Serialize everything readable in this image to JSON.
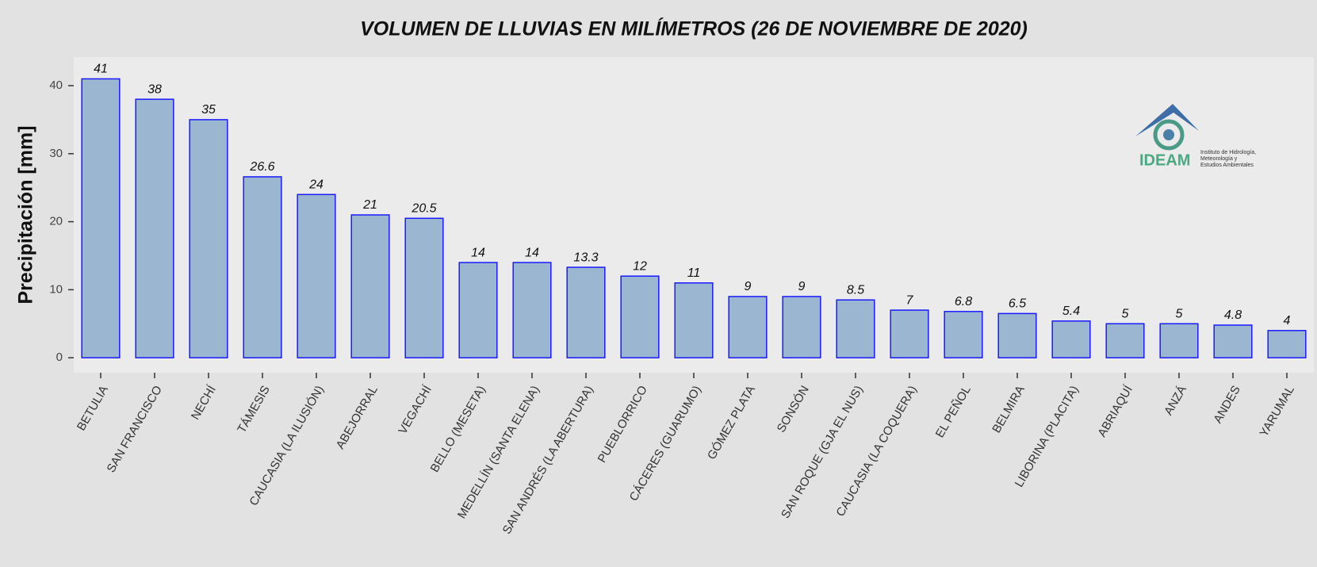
{
  "chart_data": {
    "type": "bar",
    "title": "VOLUMEN DE LLUVIAS EN MILÍMETROS (26 DE NOVIEMBRE DE 2020)",
    "y_label": "Precipitación [mm]",
    "categories": [
      "BETULIA",
      "SAN FRANCISCO",
      "NECHÍ",
      "TÁMESIS",
      "CAUCASIA (LA ILUSIÓN)",
      "ABEJORRAL",
      "VEGACHÍ",
      "BELLO (MESETA)",
      "MEDELLÍN (SANTA ELENA)",
      "SAN ANDRÉS (LA ABERTURA)",
      "PUEBLORRICO",
      "CÁCERES (GUARUMO)",
      "GÓMEZ PLATA",
      "SONSÓN",
      "SAN ROQUE (GJA EL NUS)",
      "CAUCASIA (LA COQUERA)",
      "EL PEÑOL",
      "BELMIRA",
      "LIBORINA (PLACITA)",
      "ABRIAQUÍ",
      "ANZÁ",
      "ANDES",
      "YARUMAL"
    ],
    "values": [
      41,
      38,
      35,
      26.6,
      24,
      21,
      20.5,
      14,
      14,
      13.3,
      12,
      11,
      9,
      9,
      8.5,
      7,
      6.8,
      6.5,
      5.4,
      5,
      5,
      4.8,
      4
    ],
    "color": "#9ab6d1",
    "edge_color": "#1a1aff",
    "ylim": [
      -2.2,
      44.2
    ],
    "yticks": [
      0,
      10,
      20,
      30,
      40
    ],
    "grid": false,
    "logo": {
      "name": "IDEAM",
      "text": [
        "Instituto de Hidrología,",
        "Meteorología y",
        "Estudios Ambientales"
      ]
    }
  }
}
